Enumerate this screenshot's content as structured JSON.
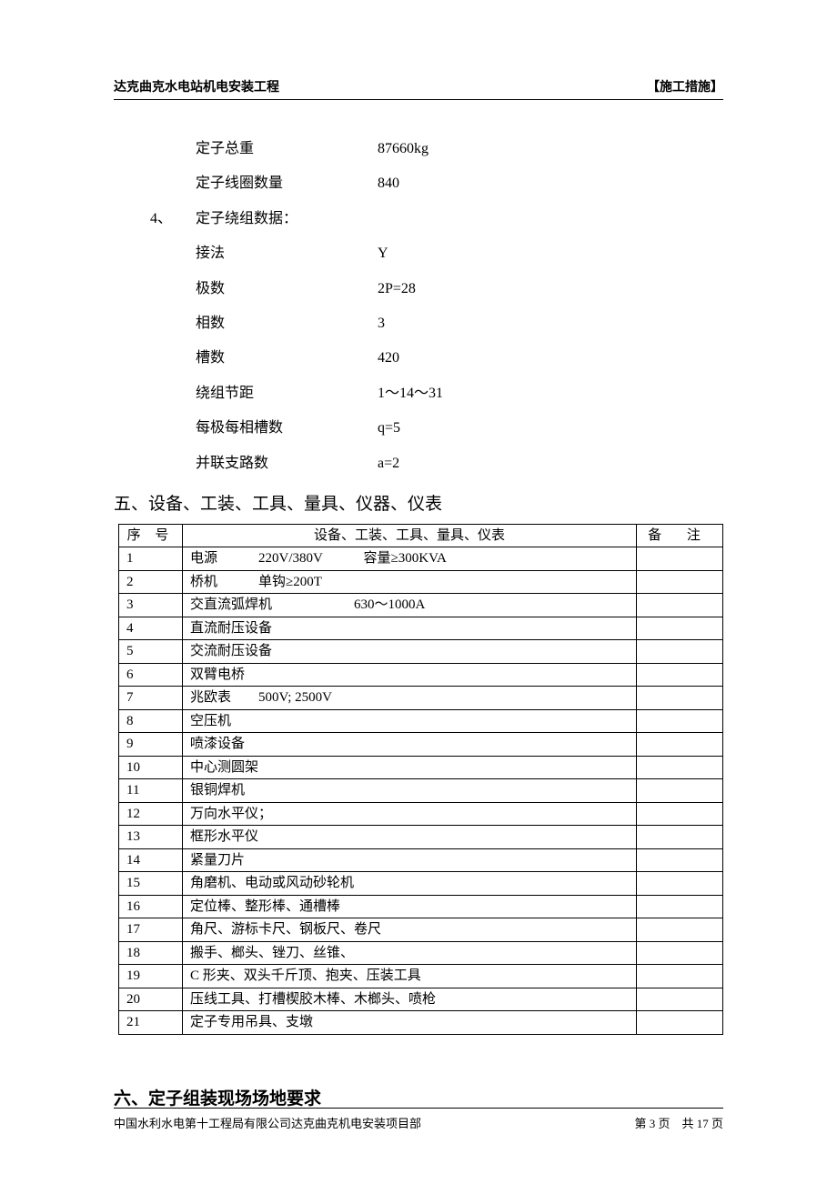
{
  "header": {
    "left": "达克曲克水电站机电安装工程",
    "right": "【施工措施】"
  },
  "specs_top": [
    {
      "label": "定子总重",
      "value": "87660kg"
    },
    {
      "label": "定子线圈数量",
      "value": "840"
    }
  ],
  "subsection": {
    "num": "4、",
    "title": "定子绕组数据："
  },
  "specs_winding": [
    {
      "label": "接法",
      "value": "Y"
    },
    {
      "label": "极数",
      "value": "2P=28"
    },
    {
      "label": "相数",
      "value": "3"
    },
    {
      "label": "槽数",
      "value": "420"
    },
    {
      "label": "绕组节距",
      "value": "1～14～31"
    },
    {
      "label": "每极每相槽数",
      "value": "q=5"
    },
    {
      "label": "并联支路数",
      "value": "a=2"
    }
  ],
  "section5": {
    "heading": "五、设备、工装、工具、量具、仪器、仪表",
    "table": {
      "columns": {
        "seq": "序 号",
        "desc": "设备、工装、工具、量具、仪表",
        "note": "备 注"
      },
      "rows": [
        {
          "n": "1",
          "d": "电源　　　220V/380V　　　容量≥300KVA",
          "r": ""
        },
        {
          "n": "2",
          "d": "桥机　　　单钩≥200T",
          "r": ""
        },
        {
          "n": "3",
          "d": "交直流弧焊机　　　　　　630～1000A",
          "r": ""
        },
        {
          "n": "4",
          "d": "直流耐压设备",
          "r": ""
        },
        {
          "n": "5",
          "d": "交流耐压设备",
          "r": ""
        },
        {
          "n": "6",
          "d": "双臂电桥",
          "r": ""
        },
        {
          "n": "7",
          "d": "兆欧表　　500V; 2500V",
          "r": ""
        },
        {
          "n": "8",
          "d": "空压机",
          "r": ""
        },
        {
          "n": "9",
          "d": "喷漆设备",
          "r": ""
        },
        {
          "n": "10",
          "d": "中心测圆架",
          "r": ""
        },
        {
          "n": "11",
          "d": "银铜焊机",
          "r": ""
        },
        {
          "n": "12",
          "d": "万向水平仪；",
          "r": ""
        },
        {
          "n": "13",
          "d": "框形水平仪",
          "r": ""
        },
        {
          "n": "14",
          "d": "紧量刀片",
          "r": ""
        },
        {
          "n": "15",
          "d": "角磨机、电动或风动砂轮机",
          "r": ""
        },
        {
          "n": "16",
          "d": "定位棒、整形棒、通槽棒",
          "r": ""
        },
        {
          "n": "17",
          "d": "角尺、游标卡尺、钢板尺、卷尺",
          "r": ""
        },
        {
          "n": "18",
          "d": "搬手、榔头、锉刀、丝锥、",
          "r": ""
        },
        {
          "n": "19",
          "d": "C 形夹、双头千斤顶、抱夹、压装工具",
          "r": ""
        },
        {
          "n": "20",
          "d": "压线工具、打槽楔胶木棒、木榔头、喷枪",
          "r": ""
        },
        {
          "n": "21",
          "d": "定子专用吊具、支墩",
          "r": ""
        }
      ]
    }
  },
  "section6": {
    "heading": "六、定子组装现场场地要求"
  },
  "footer": {
    "left": "中国水利水电第十工程局有限公司达克曲克机电安装项目部",
    "right_prefix": "第 ",
    "page_current": "3",
    "right_mid": " 页　共 ",
    "page_total": "17",
    "right_suffix": " 页"
  }
}
